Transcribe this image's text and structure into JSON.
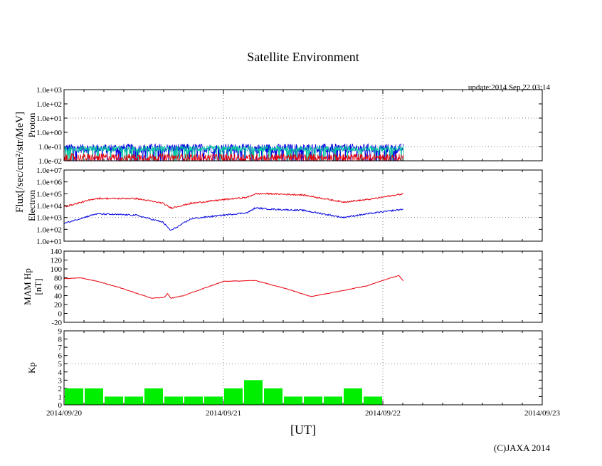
{
  "chart_data": {
    "title": "Satellite Environment",
    "update": "update:2014 Sep 22 03:14",
    "copyright": "(C)JAXA 2014",
    "xlabel": "[UT]",
    "x_ticks": [
      "2014/09/20",
      "2014/09/21",
      "2014/09/22",
      "2014/09/23"
    ],
    "x_range_days": [
      0,
      3
    ],
    "data_end_day": 2.13,
    "flux_label": "Flux[/sec/cm²/str/MeV]",
    "colors": {
      "red": "#e8000b",
      "blue": "#0000e0",
      "green": "#00c8a0",
      "kp_bar": "#00ee00",
      "grid": "#888888"
    },
    "panels": [
      {
        "name": "proton",
        "type": "line",
        "scale": "log",
        "ylabel": "Proton",
        "ylim_exp": [
          -2,
          3
        ],
        "y_ticks": [
          "1.0e+03",
          "1.0e+02",
          "1.0e+01",
          "1.0e+00",
          "1.0e-01",
          "1.0e-02"
        ],
        "grid_y_exp": [
          1,
          -1
        ],
        "series": [
          {
            "color": "blue",
            "noise_exp": [
              -1.45,
              -0.8
            ],
            "base_exp": -1.2
          },
          {
            "color": "green",
            "noise_exp": [
              -1.35,
              -0.95
            ],
            "base_exp": -1.2
          },
          {
            "color": "red",
            "noise_exp": [
              -2.0,
              -1.5
            ],
            "base_exp": -1.8
          }
        ]
      },
      {
        "name": "electron",
        "type": "line",
        "scale": "log",
        "ylabel": "Electron",
        "ylim_exp": [
          1,
          7
        ],
        "y_ticks": [
          "1.0e+07",
          "1.0e+06",
          "1.0e+05",
          "1.0e+04",
          "1.0e+03",
          "1.0e+02",
          "1.0e+01"
        ],
        "grid_y_exp": [
          3
        ],
        "series": [
          {
            "color": "red",
            "x": [
              0,
              0.2,
              0.45,
              0.62,
              0.67,
              0.8,
              1.0,
              1.15,
              1.2,
              1.3,
              1.5,
              1.75,
              1.9,
              2.13
            ],
            "y_exp": [
              3.9,
              4.6,
              4.6,
              4.2,
              3.8,
              4.2,
              4.5,
              4.7,
              5.0,
              5.0,
              4.9,
              4.3,
              4.5,
              5.0
            ]
          },
          {
            "color": "blue",
            "x": [
              0,
              0.2,
              0.45,
              0.62,
              0.67,
              0.8,
              1.0,
              1.15,
              1.2,
              1.3,
              1.5,
              1.75,
              1.9,
              2.13
            ],
            "y_exp": [
              2.5,
              3.3,
              3.2,
              2.6,
              1.9,
              2.9,
              3.2,
              3.4,
              3.8,
              3.7,
              3.6,
              3.0,
              3.3,
              3.7
            ]
          }
        ]
      },
      {
        "name": "mam-hp",
        "type": "line",
        "scale": "linear",
        "ylabel": "MAM Hp",
        "ylabel2": "[nT]",
        "ylim": [
          -20,
          140
        ],
        "y_ticks": [
          "140",
          "120",
          "100",
          "80",
          "60",
          "40",
          "20",
          "0",
          "-20"
        ],
        "series": [
          {
            "color": "red",
            "x": [
              0,
              0.1,
              0.2,
              0.35,
              0.5,
              0.55,
              0.63,
              0.65,
              0.67,
              0.75,
              1.0,
              1.1,
              1.2,
              1.4,
              1.55,
              1.7,
              1.9,
              2.05,
              2.1,
              2.13
            ],
            "y": [
              78,
              80,
              73,
              58,
              40,
              34,
              36,
              45,
              34,
              40,
              72,
              73,
              74,
              55,
              38,
              48,
              62,
              80,
              85,
              72
            ]
          }
        ]
      },
      {
        "name": "kp",
        "type": "bar",
        "scale": "linear",
        "ylabel": "Kp",
        "ylim": [
          0,
          9
        ],
        "y_ticks": [
          "9",
          "8",
          "7",
          "6",
          "5",
          "4",
          "3",
          "2",
          "1",
          "0"
        ],
        "grid_y": [
          5
        ],
        "bar_interval_days": 0.125,
        "values": [
          2,
          2,
          1,
          1,
          2,
          1,
          1,
          1,
          2,
          3,
          2,
          1,
          1,
          1,
          2,
          1
        ]
      }
    ]
  }
}
